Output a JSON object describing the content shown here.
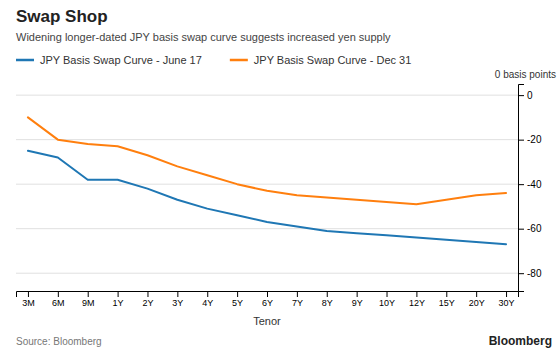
{
  "chart_data": {
    "type": "line",
    "title": "Swap Shop",
    "subtitle": "Widening longer-dated JPY basis swap curve suggests increased yen supply",
    "xlabel": "Tenor",
    "ylabel": "0 basis points",
    "annotations": [
      "Source: Bloomberg",
      "Bloomberg"
    ],
    "categories": [
      "3M",
      "6M",
      "9M",
      "1Y",
      "2Y",
      "3Y",
      "4Y",
      "5Y",
      "6Y",
      "7Y",
      "8Y",
      "9Y",
      "10Y",
      "12Y",
      "15Y",
      "20Y",
      "30Y"
    ],
    "series": [
      {
        "name": "JPY Basis Swap Curve - June 17",
        "values": [
          -25,
          -28,
          -38,
          -38,
          -42,
          -47,
          -51,
          -54,
          -57,
          -59,
          -61,
          -62,
          -63,
          -64,
          -65,
          -66,
          -67
        ]
      },
      {
        "name": "JPY Basis Swap Curve - Dec 31",
        "values": [
          -10,
          -20,
          -22,
          -23,
          -27,
          -32,
          -36,
          -40,
          -43,
          -45,
          -46,
          -47,
          -48,
          -49,
          -47,
          -45,
          -44
        ]
      }
    ],
    "ylim": [
      -88,
      5
    ],
    "yticks": [
      0,
      -20,
      -40,
      -60,
      -80
    ],
    "grid": true,
    "legend": "top"
  }
}
